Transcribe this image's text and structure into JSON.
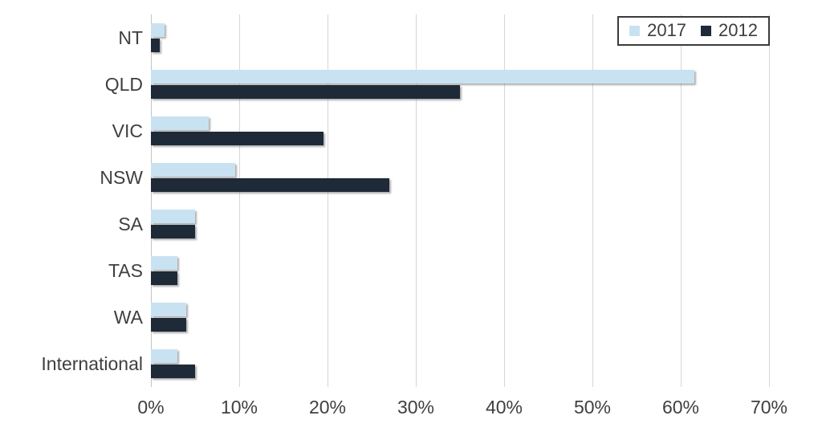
{
  "chart_data": {
    "type": "bar",
    "orientation": "horizontal",
    "title": "",
    "categories": [
      "NT",
      "QLD",
      "VIC",
      "NSW",
      "SA",
      "TAS",
      "WA",
      "International"
    ],
    "series": [
      {
        "name": "2017",
        "color": "#c9e2f2",
        "values": [
          1.5,
          61.5,
          6.5,
          9.5,
          5,
          3,
          4,
          3
        ]
      },
      {
        "name": "2012",
        "color": "#1f2a38",
        "values": [
          1,
          35,
          19.5,
          27,
          5,
          3,
          4,
          5
        ]
      }
    ],
    "x_ticks": [
      "0%",
      "10%",
      "20%",
      "30%",
      "40%",
      "50%",
      "60%",
      "70%"
    ],
    "xlim": [
      0,
      70
    ],
    "xlabel": "",
    "ylabel": "",
    "grid": true,
    "legend_position": "top-right"
  },
  "colors": {
    "background": "#ffffff",
    "gridline": "#d6d6d6",
    "axis_line": "#c3c3c3",
    "text": "#3f3f3f",
    "legend_border": "#3b3b3b"
  }
}
